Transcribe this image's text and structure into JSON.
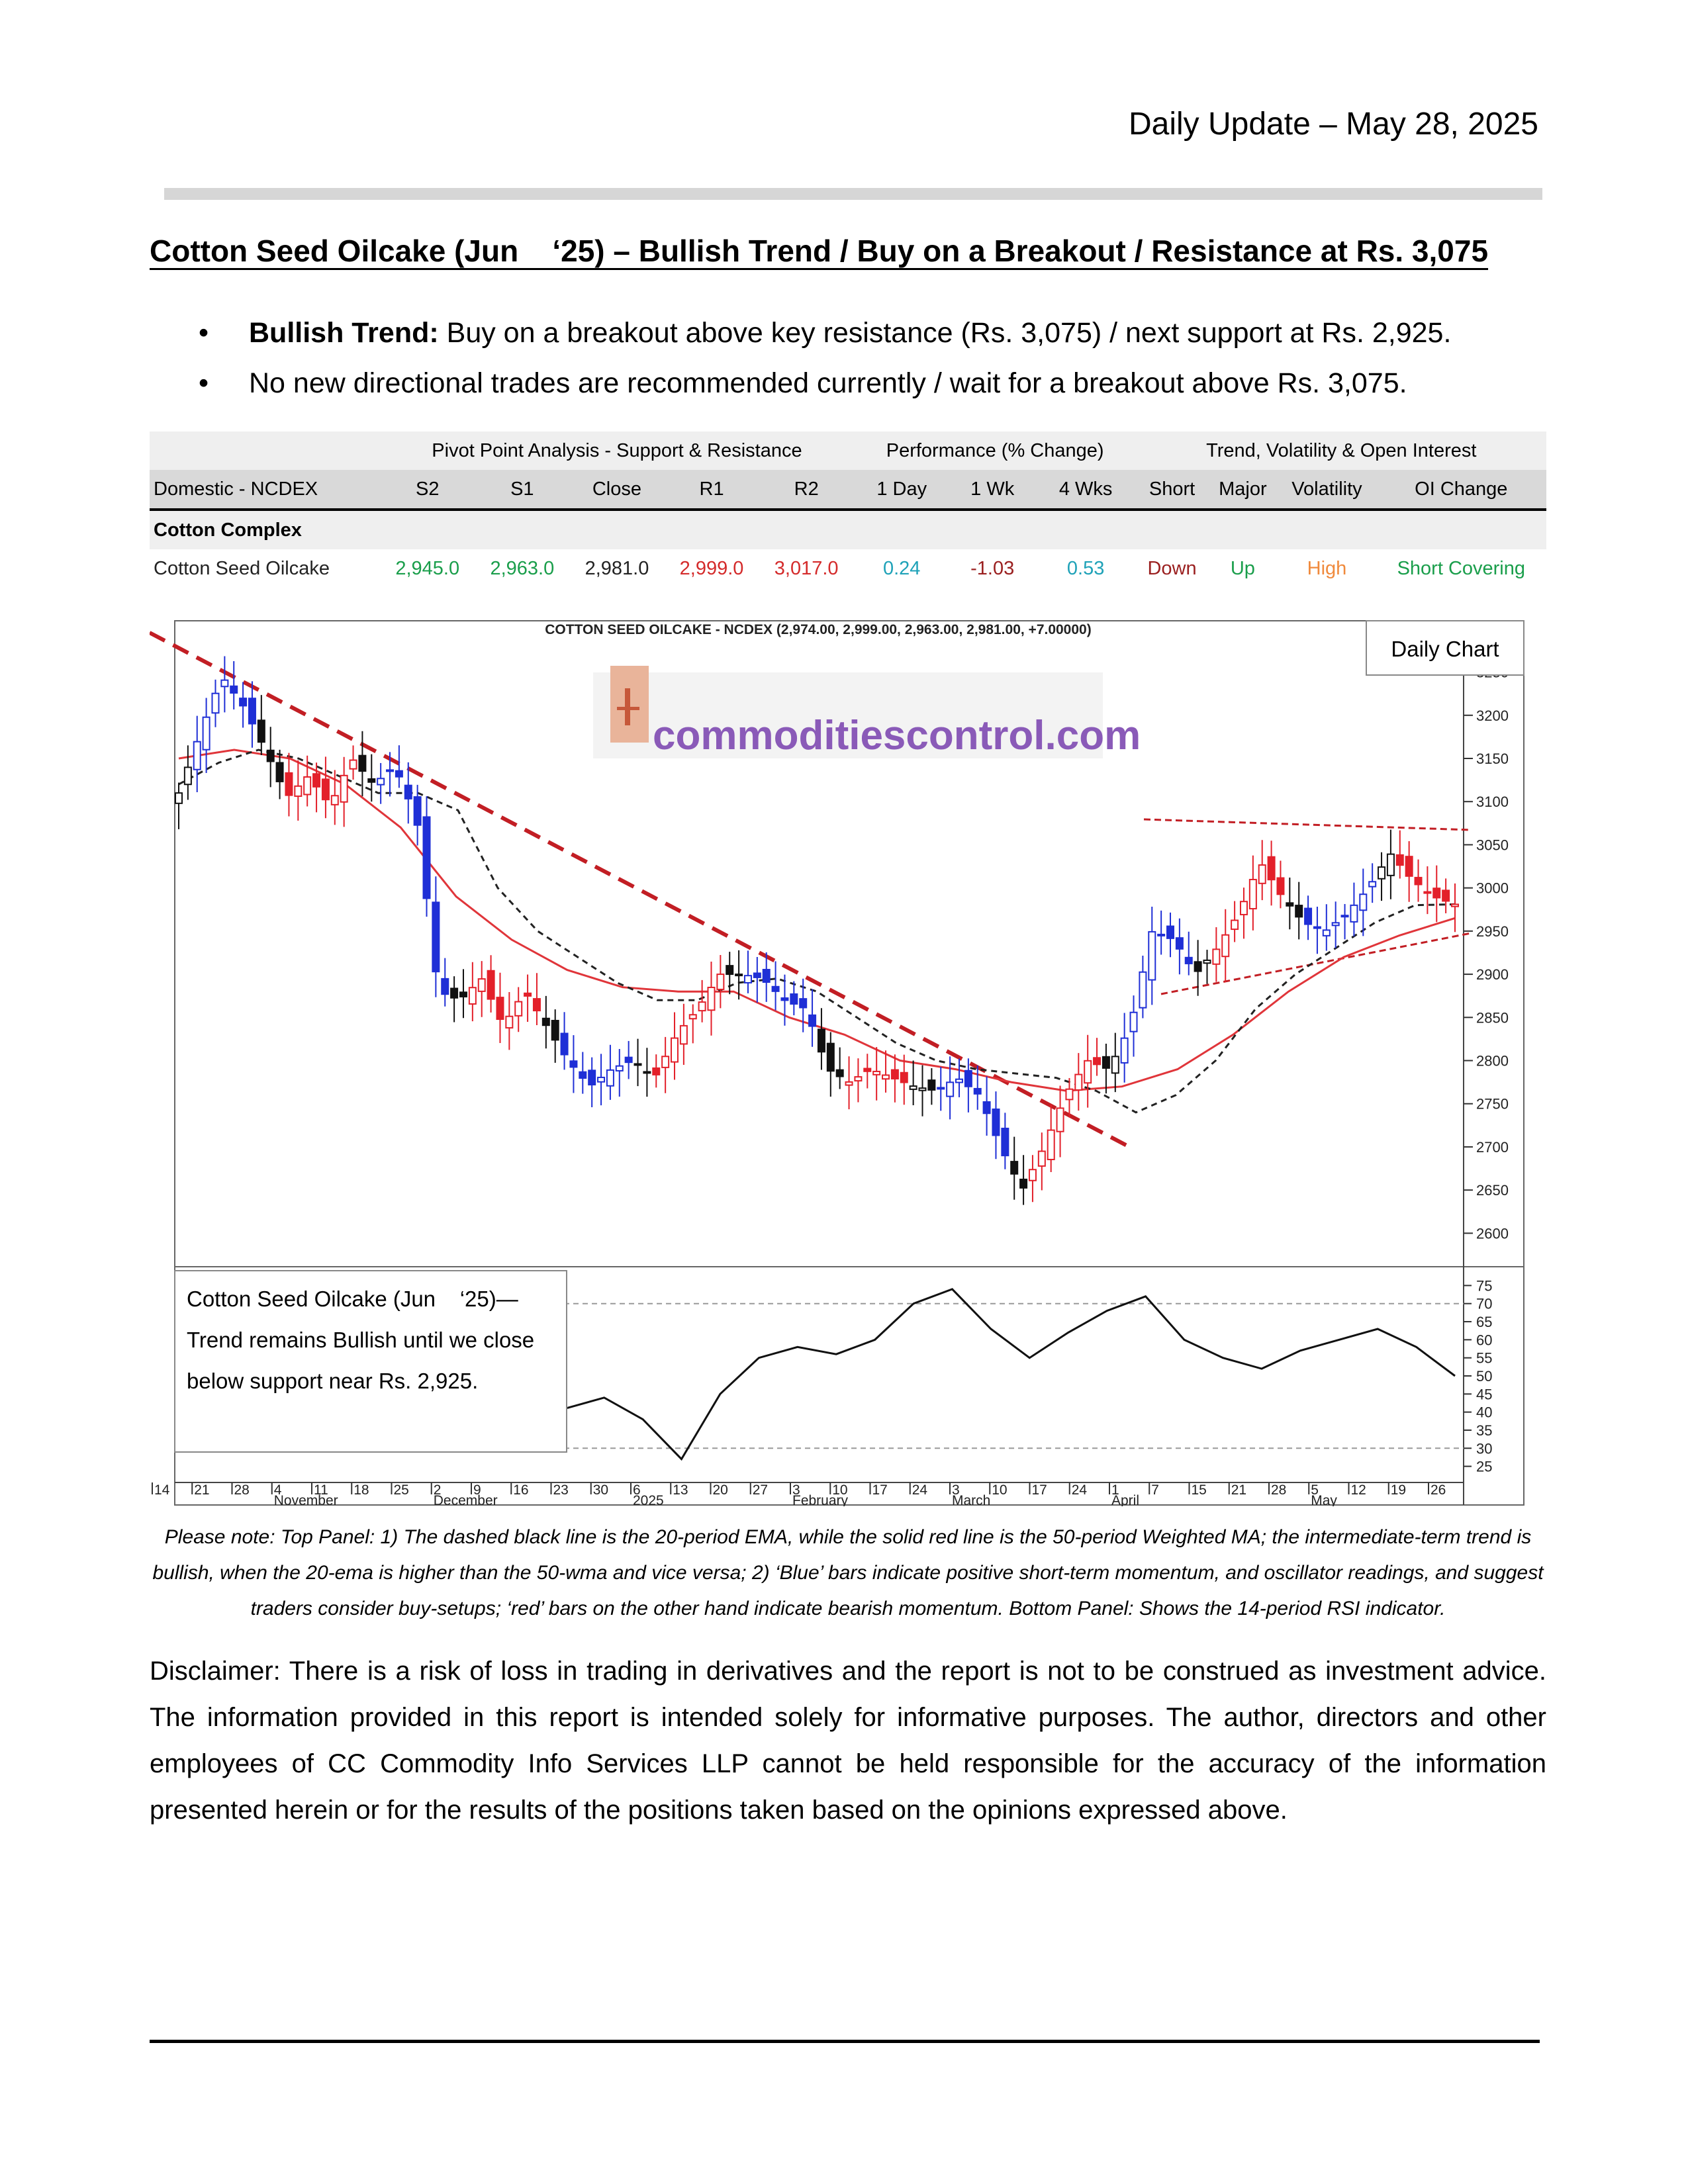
{
  "header": {
    "date": "Daily Update – May 28, 2025"
  },
  "title": "Cotton Seed Oilcake (Jun    ‘25) – Bullish Trend / Buy on a Breakout / Resistance at Rs. 3,075",
  "bullets": [
    {
      "strong": "Bullish Trend:",
      "text": " Buy on a breakout above key resistance (Rs. 3,075) / next support at Rs. 2,925."
    },
    {
      "strong": "",
      "text": "No new directional trades are recommended currently / wait for a breakout above Rs. 3,075."
    }
  ],
  "table": {
    "group_headers": {
      "pivot": "Pivot Point Analysis - Support & Resistance",
      "performance": "Performance (% Change)",
      "trend": "Trend, Volatility & Open Interest"
    },
    "columns": [
      "Domestic - NCDEX",
      "S2",
      "S1",
      "Close",
      "R1",
      "R2",
      "1 Day",
      "1 Wk",
      "4 Wks",
      "Short",
      "Major",
      "Volatility",
      "OI Change"
    ],
    "section": "Cotton Complex",
    "row": {
      "name": "Cotton Seed Oilcake",
      "s2": "2,945.0",
      "s1": "2,963.0",
      "close": "2,981.0",
      "r1": "2,999.0",
      "r2": "3,017.0",
      "day1": "0.24",
      "wk1": "-1.03",
      "wk4": "0.53",
      "short": "Down",
      "major": "Up",
      "volatility": "High",
      "oi_change": "Short Covering"
    }
  },
  "chart_data": {
    "type": "candlestick",
    "title": "COTTON SEED OILCAKE - NCDEX (2,974.00, 2,999.00, 2,963.00, 2,981.00, +7.00000)",
    "badge": "Daily Chart",
    "watermark": "commoditiescontrol.com",
    "price_axis_ticks": [
      3250,
      3200,
      3150,
      3100,
      3050,
      3000,
      2950,
      2900,
      2850,
      2800,
      2750,
      2700,
      2650,
      2600
    ],
    "ylim": [
      2575,
      3265
    ],
    "rsi_axis_ticks": [
      75,
      70,
      65,
      60,
      55,
      50,
      45,
      40,
      35,
      30,
      25
    ],
    "rsi_ylim": [
      22,
      78
    ],
    "rsi_levels": [
      70,
      30
    ],
    "x_day_labels": [
      "14",
      "21",
      "28",
      "4",
      "11",
      "18",
      "25",
      "2",
      "9",
      "16",
      "23",
      "30",
      "6",
      "13",
      "20",
      "27",
      "3",
      "10",
      "17",
      "24",
      "3",
      "10",
      "17",
      "24",
      "1",
      "7",
      "15",
      "21",
      "28",
      "5",
      "12",
      "19",
      "26"
    ],
    "x_month_labels": [
      "November",
      "December",
      "2025",
      "February",
      "March",
      "April",
      "May"
    ],
    "close_path": [
      3110,
      3180,
      3245,
      3210,
      3160,
      3105,
      3130,
      3095,
      3150,
      3120,
      3140,
      3080,
      2880,
      2870,
      2895,
      2840,
      2880,
      2840,
      2800,
      2770,
      2790,
      2800,
      2780,
      2830,
      2860,
      2900,
      2900,
      2895,
      2870,
      2860,
      2790,
      2775,
      2790,
      2780,
      2770,
      2765,
      2780,
      2760,
      2700,
      2650,
      2700,
      2760,
      2800,
      2790,
      2840,
      2950,
      2940,
      2900,
      2930,
      2970,
      3030,
      2990,
      2960,
      2950,
      2970,
      3000,
      3040,
      3010,
      2990,
      2981
    ],
    "ema20_path": [
      3120,
      3145,
      3160,
      3150,
      3130,
      3110,
      3110,
      3090,
      3000,
      2950,
      2920,
      2890,
      2870,
      2870,
      2890,
      2895,
      2880,
      2850,
      2820,
      2800,
      2790,
      2785,
      2780,
      2765,
      2740,
      2760,
      2800,
      2860,
      2900,
      2930,
      2960,
      2980,
      2981
    ],
    "wma50_path": [
      3150,
      3160,
      3150,
      3120,
      3070,
      2990,
      2940,
      2905,
      2885,
      2880,
      2880,
      2850,
      2830,
      2800,
      2790,
      2775,
      2765,
      2770,
      2790,
      2830,
      2880,
      2920,
      2945,
      2965
    ],
    "rsi_path": [
      45,
      48,
      62,
      58,
      60,
      55,
      52,
      53,
      42,
      45,
      41,
      44,
      38,
      27,
      45,
      55,
      58,
      56,
      60,
      70,
      74,
      63,
      55,
      62,
      68,
      72,
      60,
      55,
      52,
      57,
      60,
      63,
      58,
      50
    ],
    "trendlines": {
      "downtrend": "Falling resistance from November high through March breakout",
      "triangle_top": "Flat resistance near 3,075",
      "triangle_bottom": "Rising support from April lows"
    }
  },
  "chart_annotation": "Cotton Seed Oilcake (Jun    ‘25)—Trend remains Bullish until we close below support near Rs. 2,925.",
  "note": "Please note: Top Panel: 1) The dashed black line is the 20-period EMA, while the solid red line is the 50-period Weighted MA; the intermediate-term trend is bullish, when the 20-ema is higher than the 50-wma and vice versa; 2)    ‘Blue’    bars indicate positive short-term momentum, and oscillator readings, and suggest traders consider buy-setups;    ‘red’    bars on the other hand indicate bearish momentum. Bottom Panel: Shows the 14-period RSI indicator.",
  "disclaimer": "Disclaimer: There is a risk of loss in trading in derivatives and the report is not to be construed as investment advice. The information provided in this report is intended solely for informative purposes. The author, directors and other employees of CC Commodity Info Services LLP cannot be held responsible for the accuracy of the information presented herein or for the results of the positions taken based on the opinions expressed above.",
  "colors": {
    "bull": "#1f2fd6",
    "bear": "#e3202a",
    "neutral": "#111111",
    "ema": "#222222",
    "wma": "#e0353a",
    "trend": "#c21e24"
  }
}
